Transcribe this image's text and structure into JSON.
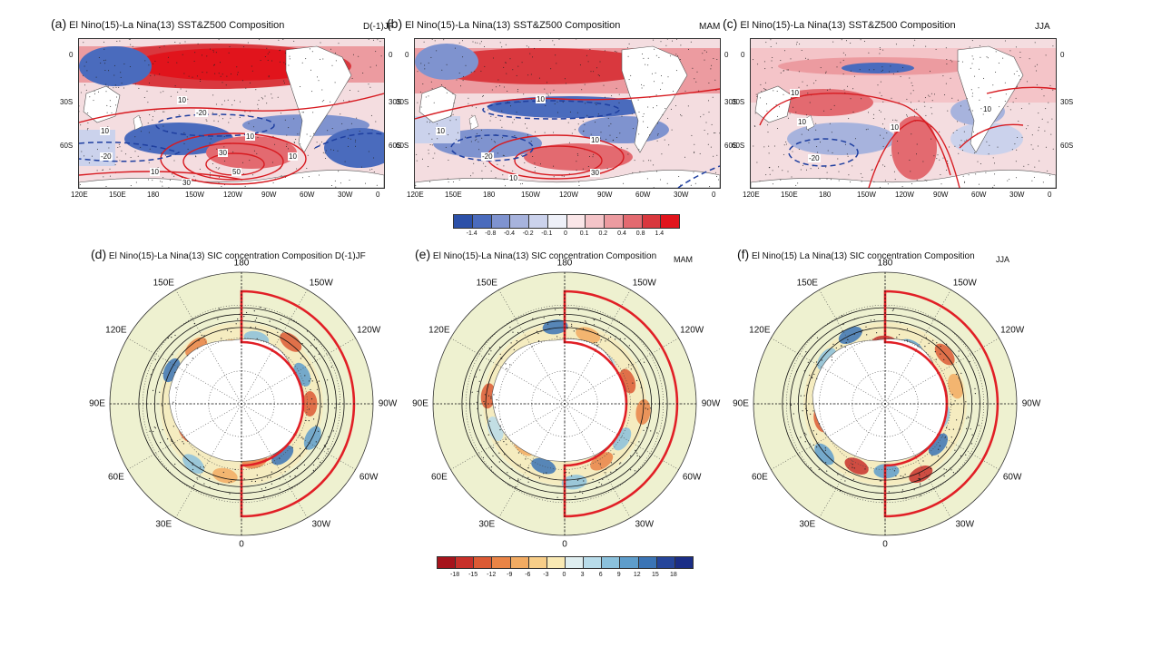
{
  "top_panels": [
    {
      "id": "a",
      "label": "(a)",
      "title": "El Nino(15)-La Nina(13) SST&Z500 Composition",
      "season": "D(-1)JF"
    },
    {
      "id": "b",
      "label": "(b)",
      "title": "El Nino(15)-La Nina(13) SST&Z500 Composition",
      "season": "MAM"
    },
    {
      "id": "c",
      "label": "(c)",
      "title": "El Nino(15)-La Nina(13) SST&Z500 Composition",
      "season": "JJA"
    }
  ],
  "top_x_ticks": [
    "120E",
    "150E",
    "180",
    "150W",
    "120W",
    "90W",
    "60W",
    "30W",
    "0"
  ],
  "top_y_ticks": [
    "0",
    "30S",
    "60S"
  ],
  "top_colorbar": {
    "labels": [
      "-1.4",
      "-0.8",
      "-0.4",
      "-0.2",
      "-0.1",
      "0",
      "0.1",
      "0.2",
      "0.4",
      "0.8",
      "1.4"
    ],
    "colors": [
      "#2c50a8",
      "#4a6bbd",
      "#7f93cf",
      "#a7b3dd",
      "#cbd2ec",
      "#eef0f8",
      "#fae6e8",
      "#f4c4c8",
      "#ec9ba0",
      "#e36a70",
      "#d9383e",
      "#e1141c"
    ]
  },
  "contour_labels": {
    "a": [
      "10",
      "-20",
      "10",
      "-20",
      "30",
      "10",
      "50",
      "30",
      "10",
      "10"
    ],
    "b": [
      "10",
      "10",
      "-20",
      "10",
      "30",
      "10"
    ],
    "c": [
      "10",
      "10",
      "10",
      "10",
      "-20"
    ]
  },
  "bottom_panels": [
    {
      "id": "d",
      "label": "(d)",
      "title": "El Nino(15)-La Nina(13) SIC concentration Composition",
      "season": "D(-1)JF"
    },
    {
      "id": "e",
      "label": "(e)",
      "title": "El Nino(15)-La Nina(13) SIC concentration Composition",
      "season": "MAM"
    },
    {
      "id": "f",
      "label": "(f)",
      "title": "El Nino(15) La Nina(13) SIC concentration Composition",
      "season": "JJA"
    }
  ],
  "polar_labels": {
    "top": "180",
    "bottom": "0",
    "left": "90E",
    "right": "90W",
    "ul1": "150E",
    "ul2": "120E",
    "ur1": "150W",
    "ur2": "120W",
    "ll1": "60E",
    "ll2": "30E",
    "lr1": "60W",
    "lr2": "30W"
  },
  "bottom_colorbar": {
    "labels": [
      "-18",
      "-15",
      "-12",
      "-9",
      "-6",
      "-3",
      "0",
      "3",
      "6",
      "9",
      "12",
      "15",
      "18"
    ],
    "colors": [
      "#a6141c",
      "#c8302a",
      "#dc5a34",
      "#e98446",
      "#f2ab62",
      "#f7cd88",
      "#f9e9b4",
      "#dfeef0",
      "#b8dcea",
      "#8bc1dc",
      "#5e9dcb",
      "#3b74b5",
      "#25459a",
      "#1a2d86"
    ]
  }
}
